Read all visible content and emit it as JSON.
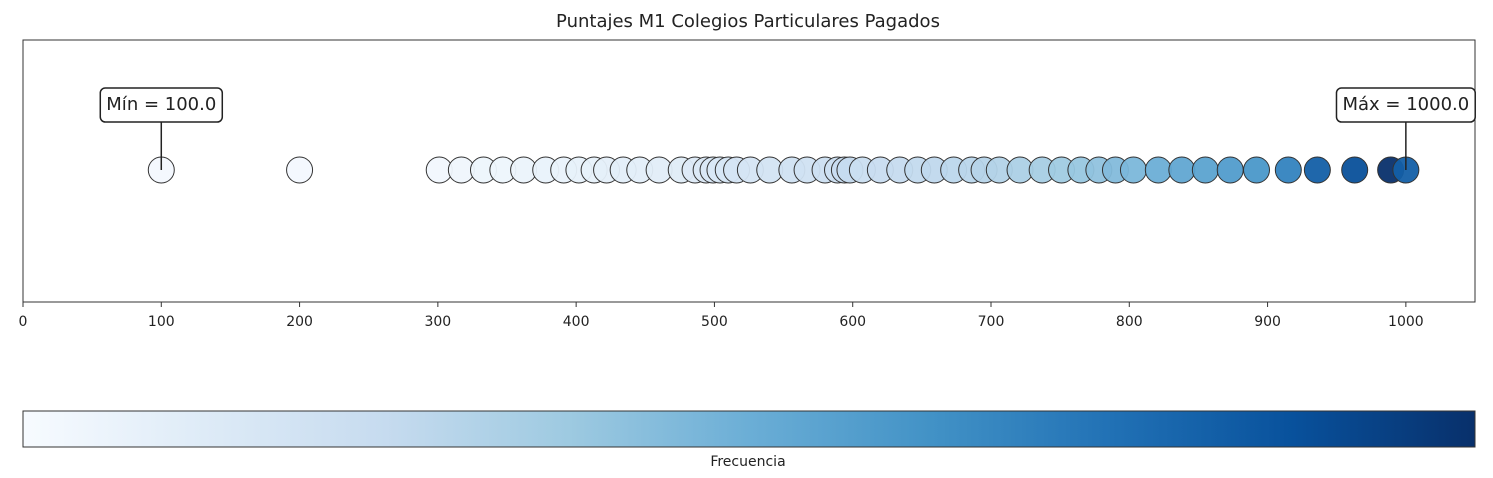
{
  "chart_data": {
    "type": "strip",
    "title": "Puntajes M1 Colegios Particulares Pagados",
    "x": [
      100,
      200,
      301,
      317,
      333,
      347,
      362,
      378,
      391,
      402,
      413,
      422,
      434,
      446,
      460,
      476,
      486,
      494,
      499,
      504,
      510,
      516,
      526,
      540,
      556,
      567,
      580,
      589,
      594,
      598,
      607,
      620,
      634,
      647,
      659,
      673,
      686,
      695,
      706,
      721,
      737,
      751,
      765,
      778,
      790,
      803,
      821,
      838,
      855,
      873,
      892,
      915,
      936,
      963,
      989,
      1000
    ],
    "frequency": [
      0.02,
      0.02,
      0.03,
      0.04,
      0.05,
      0.05,
      0.06,
      0.07,
      0.07,
      0.08,
      0.08,
      0.09,
      0.1,
      0.1,
      0.11,
      0.12,
      0.13,
      0.14,
      0.15,
      0.15,
      0.16,
      0.17,
      0.17,
      0.18,
      0.2,
      0.2,
      0.22,
      0.22,
      0.24,
      0.25,
      0.23,
      0.24,
      0.25,
      0.26,
      0.27,
      0.28,
      0.29,
      0.3,
      0.31,
      0.33,
      0.35,
      0.37,
      0.39,
      0.41,
      0.44,
      0.46,
      0.5,
      0.53,
      0.55,
      0.58,
      0.6,
      0.68,
      0.82,
      0.88,
      1.0,
      0.82
    ],
    "clim": [
      0,
      1
    ],
    "colormap": "Blues",
    "colorbar_label": "Frecuencia",
    "xlim": [
      0,
      1050
    ],
    "xticks": [
      0,
      100,
      200,
      300,
      400,
      500,
      600,
      700,
      800,
      900,
      1000
    ],
    "annotations": [
      {
        "text": "Mín = 100.0",
        "x": 100
      },
      {
        "text": "Máx = 1000.0",
        "x": 1000
      }
    ]
  }
}
